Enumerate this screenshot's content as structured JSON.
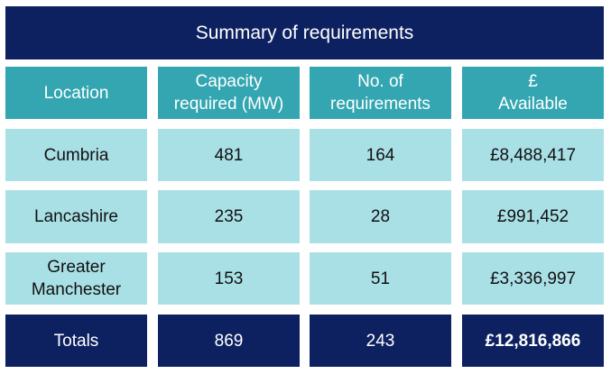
{
  "title": "Summary of requirements",
  "headers": [
    "Location",
    "Capacity\nrequired (MW)",
    "No. of\nrequirements",
    "£\nAvailable"
  ],
  "rows": [
    {
      "location": "Cumbria",
      "capacity": "481",
      "requirements": "164",
      "available": "£8,488,417"
    },
    {
      "location": "Lancashire",
      "capacity": "235",
      "requirements": "28",
      "available": "£991,452"
    },
    {
      "location": "Greater\nManchester",
      "capacity": "153",
      "requirements": "51",
      "available": "£3,336,997"
    }
  ],
  "totals": {
    "label": "Totals",
    "capacity": "869",
    "requirements": "243",
    "available": "£12,816,866"
  },
  "colors": {
    "navy": "#0d2160",
    "teal": "#33a6b1",
    "light_teal": "#a9e0e6"
  }
}
